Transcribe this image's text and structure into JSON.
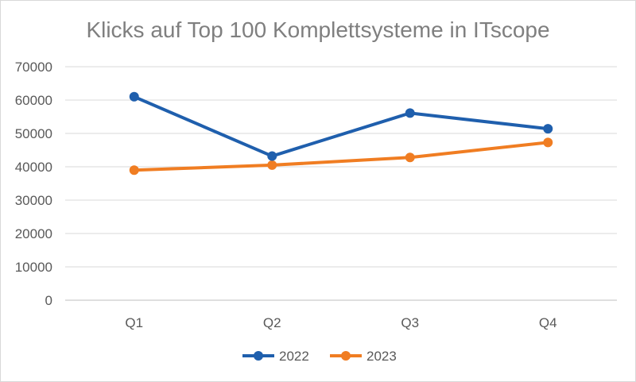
{
  "chart_data": {
    "type": "line",
    "title": "Klicks auf Top 100 Komplettsysteme in ITscope",
    "categories": [
      "Q1",
      "Q2",
      "Q3",
      "Q4"
    ],
    "series": [
      {
        "name": "2022",
        "values": [
          61000,
          43200,
          56100,
          51400
        ],
        "color": "#1f5fad"
      },
      {
        "name": "2023",
        "values": [
          39000,
          40500,
          42800,
          47300
        ],
        "color": "#f07d22"
      }
    ],
    "ylim": [
      0,
      70000
    ],
    "yticks": [
      "70000",
      "60000",
      "50000",
      "40000",
      "30000",
      "20000",
      "10000",
      "0"
    ],
    "grid": true,
    "legend": "bottom",
    "xlabel": "",
    "ylabel": ""
  }
}
